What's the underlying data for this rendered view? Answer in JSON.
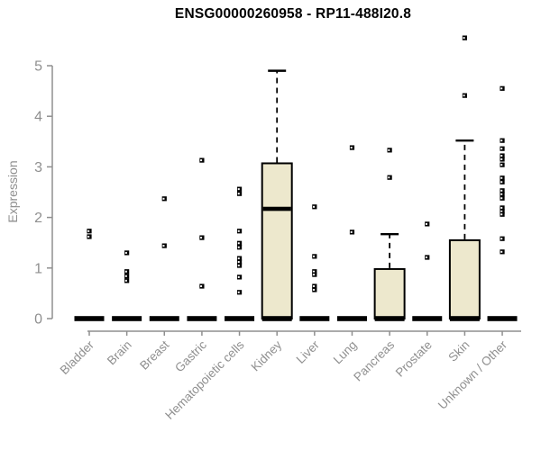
{
  "chart_data": {
    "type": "boxplot",
    "title": "ENSG00000260958 - RP11-488I20.8",
    "ylabel": "Expression",
    "xlabel": "",
    "ylim": [
      0,
      5
    ],
    "yticks": [
      0,
      1,
      2,
      3,
      4,
      5
    ],
    "grid": false,
    "marker": "open-square",
    "colors": {
      "box_fill": "#EDE8CD",
      "box_stroke": "#000000",
      "median": "#000000",
      "whisker": "#000000",
      "outlier": "#000000",
      "axis": "#8f8f8f",
      "tick_label": "#8f8f8f",
      "title": "#000000"
    },
    "categories": [
      "Bladder",
      "Brain",
      "Breast",
      "Gastric",
      "Hematopoietic cells",
      "Kidney",
      "Liver",
      "Lung",
      "Pancreas",
      "Prostate",
      "Skin",
      "Unknown / Other"
    ],
    "boxes": [
      {
        "category": "Bladder",
        "q1": 0,
        "median": 0,
        "q3": 0,
        "whisker_low": 0,
        "whisker_high": 0,
        "outliers": [
          1.73,
          1.62
        ]
      },
      {
        "category": "Brain",
        "q1": 0,
        "median": 0,
        "q3": 0,
        "whisker_low": 0,
        "whisker_high": 0,
        "outliers": [
          1.3,
          0.93,
          0.84,
          0.75
        ]
      },
      {
        "category": "Breast",
        "q1": 0,
        "median": 0,
        "q3": 0,
        "whisker_low": 0,
        "whisker_high": 0,
        "outliers": [
          2.37,
          1.44
        ]
      },
      {
        "category": "Gastric",
        "q1": 0,
        "median": 0,
        "q3": 0,
        "whisker_low": 0,
        "whisker_high": 0,
        "outliers": [
          3.13,
          1.6,
          0.64
        ]
      },
      {
        "category": "Hematopoietic cells",
        "q1": 0,
        "median": 0,
        "q3": 0,
        "whisker_low": 0,
        "whisker_high": 0,
        "outliers": [
          2.56,
          2.47,
          1.73,
          1.49,
          1.41,
          1.19,
          1.12,
          1.05,
          0.82,
          0.52
        ]
      },
      {
        "category": "Kidney",
        "q1": 0,
        "median": 2.17,
        "q3": 3.07,
        "whisker_low": 0,
        "whisker_high": 4.9,
        "outliers": []
      },
      {
        "category": "Liver",
        "q1": 0,
        "median": 0,
        "q3": 0,
        "whisker_low": 0,
        "whisker_high": 0,
        "outliers": [
          2.21,
          1.23,
          0.93,
          0.87,
          0.64,
          0.57
        ]
      },
      {
        "category": "Lung",
        "q1": 0,
        "median": 0,
        "q3": 0,
        "whisker_low": 0,
        "whisker_high": 0,
        "outliers": [
          3.38,
          1.71
        ]
      },
      {
        "category": "Pancreas",
        "q1": 0,
        "median": 0,
        "q3": 0.98,
        "whisker_low": 0,
        "whisker_high": 1.67,
        "outliers": [
          3.33,
          2.79
        ]
      },
      {
        "category": "Prostate",
        "q1": 0,
        "median": 0,
        "q3": 0,
        "whisker_low": 0,
        "whisker_high": 0,
        "outliers": [
          1.87,
          1.21
        ]
      },
      {
        "category": "Skin",
        "q1": 0,
        "median": 0,
        "q3": 1.55,
        "whisker_low": 0,
        "whisker_high": 3.52,
        "outliers": [
          5.55,
          4.41
        ]
      },
      {
        "category": "Unknown / Other",
        "q1": 0,
        "median": 0,
        "q3": 0,
        "whisker_low": 0,
        "whisker_high": 0,
        "outliers": [
          4.55,
          3.52,
          3.36,
          3.22,
          3.15,
          3.04,
          2.78,
          2.7,
          2.53,
          2.46,
          2.38,
          2.19,
          2.12,
          2.06,
          1.58,
          1.32
        ]
      }
    ]
  }
}
